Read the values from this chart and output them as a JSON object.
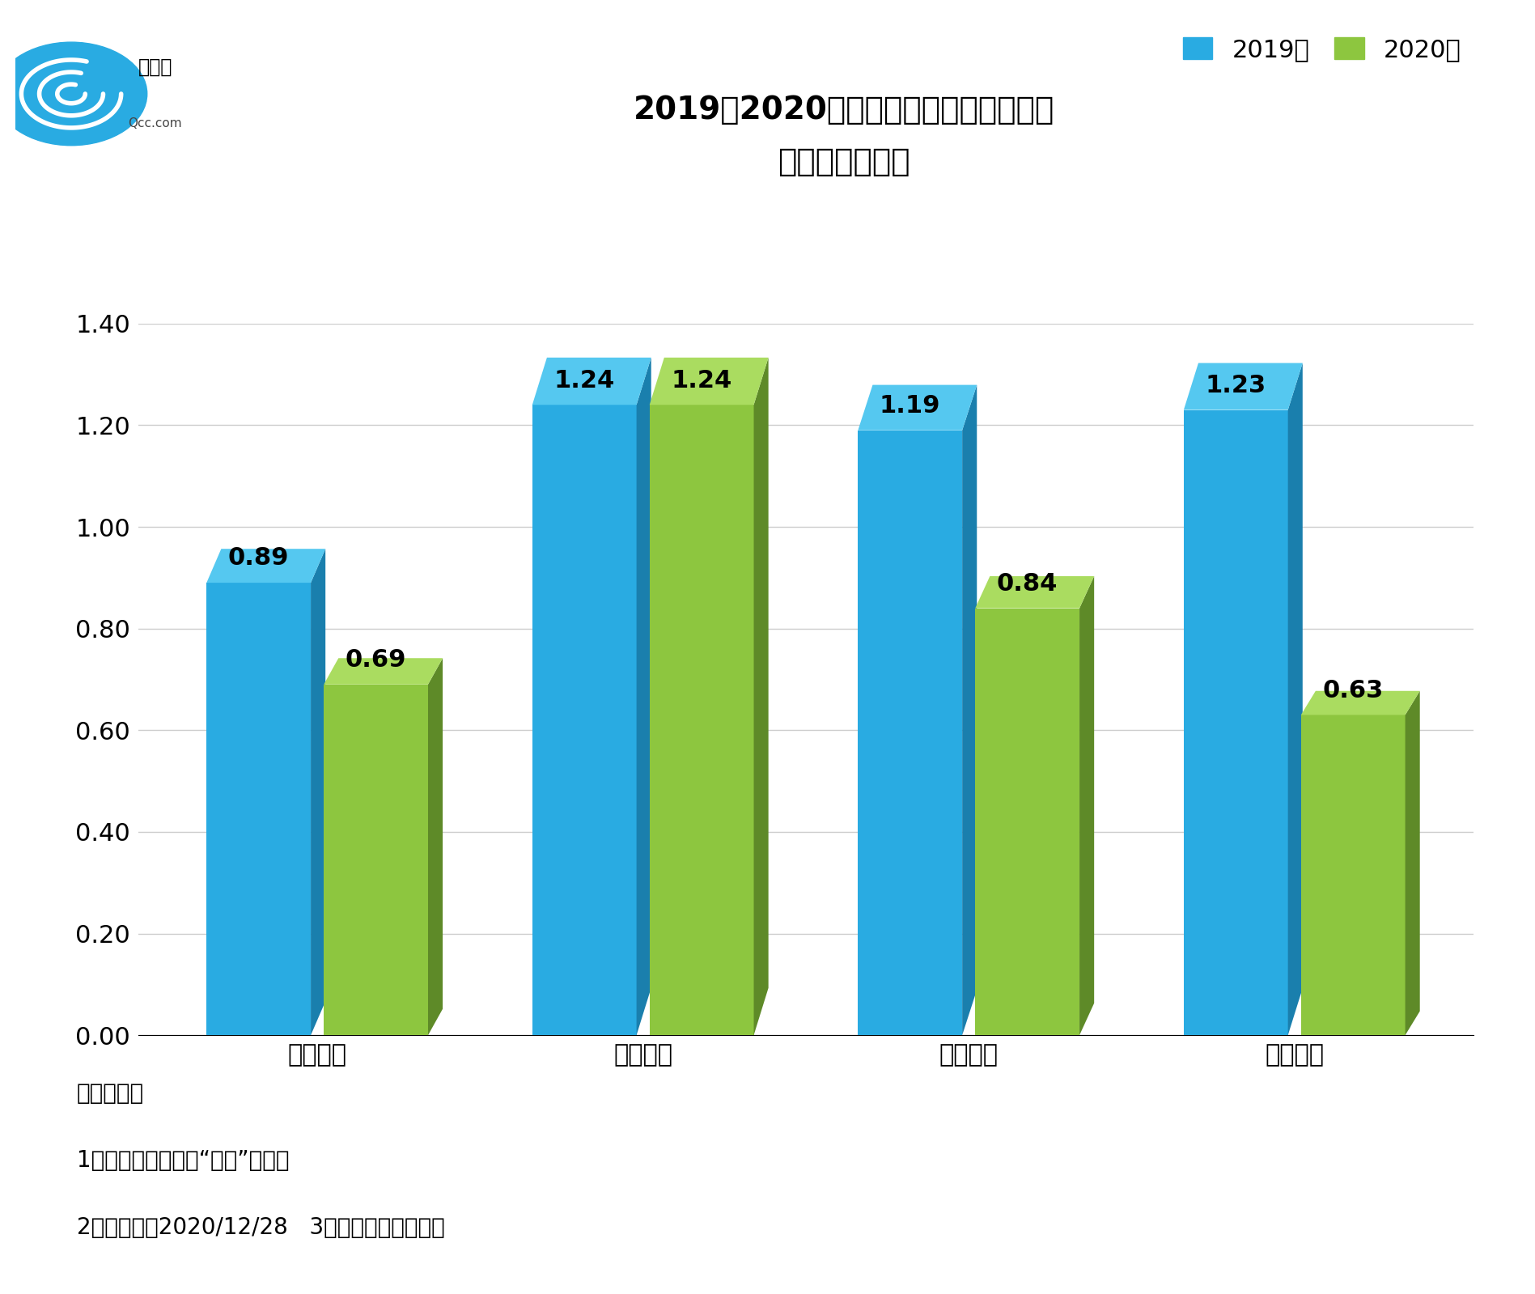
{
  "title_line1": "2019、2020年瓷砖相关企业注册量变化",
  "title_line2": "（单位：万家）",
  "categories": [
    "第一季度",
    "第二季度",
    "第三季度",
    "第四季度"
  ],
  "series_2019": [
    0.89,
    1.24,
    1.19,
    1.23
  ],
  "series_2020": [
    0.69,
    1.24,
    0.84,
    0.63
  ],
  "color_2019": "#29ABE2",
  "color_2019_dark": "#1A7FAD",
  "color_2020": "#8DC63F",
  "color_2020_dark": "#5E8A28",
  "legend_labels": [
    "2019年",
    "2020年"
  ],
  "ylim": [
    0,
    1.4
  ],
  "yticks": [
    0.0,
    0.2,
    0.4,
    0.6,
    0.8,
    1.0,
    1.2,
    1.4
  ],
  "background_color": "#FFFFFF",
  "grid_color": "#CCCCCC",
  "note_title": "数据说明：",
  "note_line1": "1、仅统计关键词为“瓷砖”的企业",
  "note_line2": "2、统计时间2020/12/28   3、数据来源：企查查",
  "bar_width": 0.32,
  "title_fontsize": 28,
  "tick_fontsize": 22,
  "legend_fontsize": 22,
  "note_fontsize": 20,
  "value_fontsize": 22
}
